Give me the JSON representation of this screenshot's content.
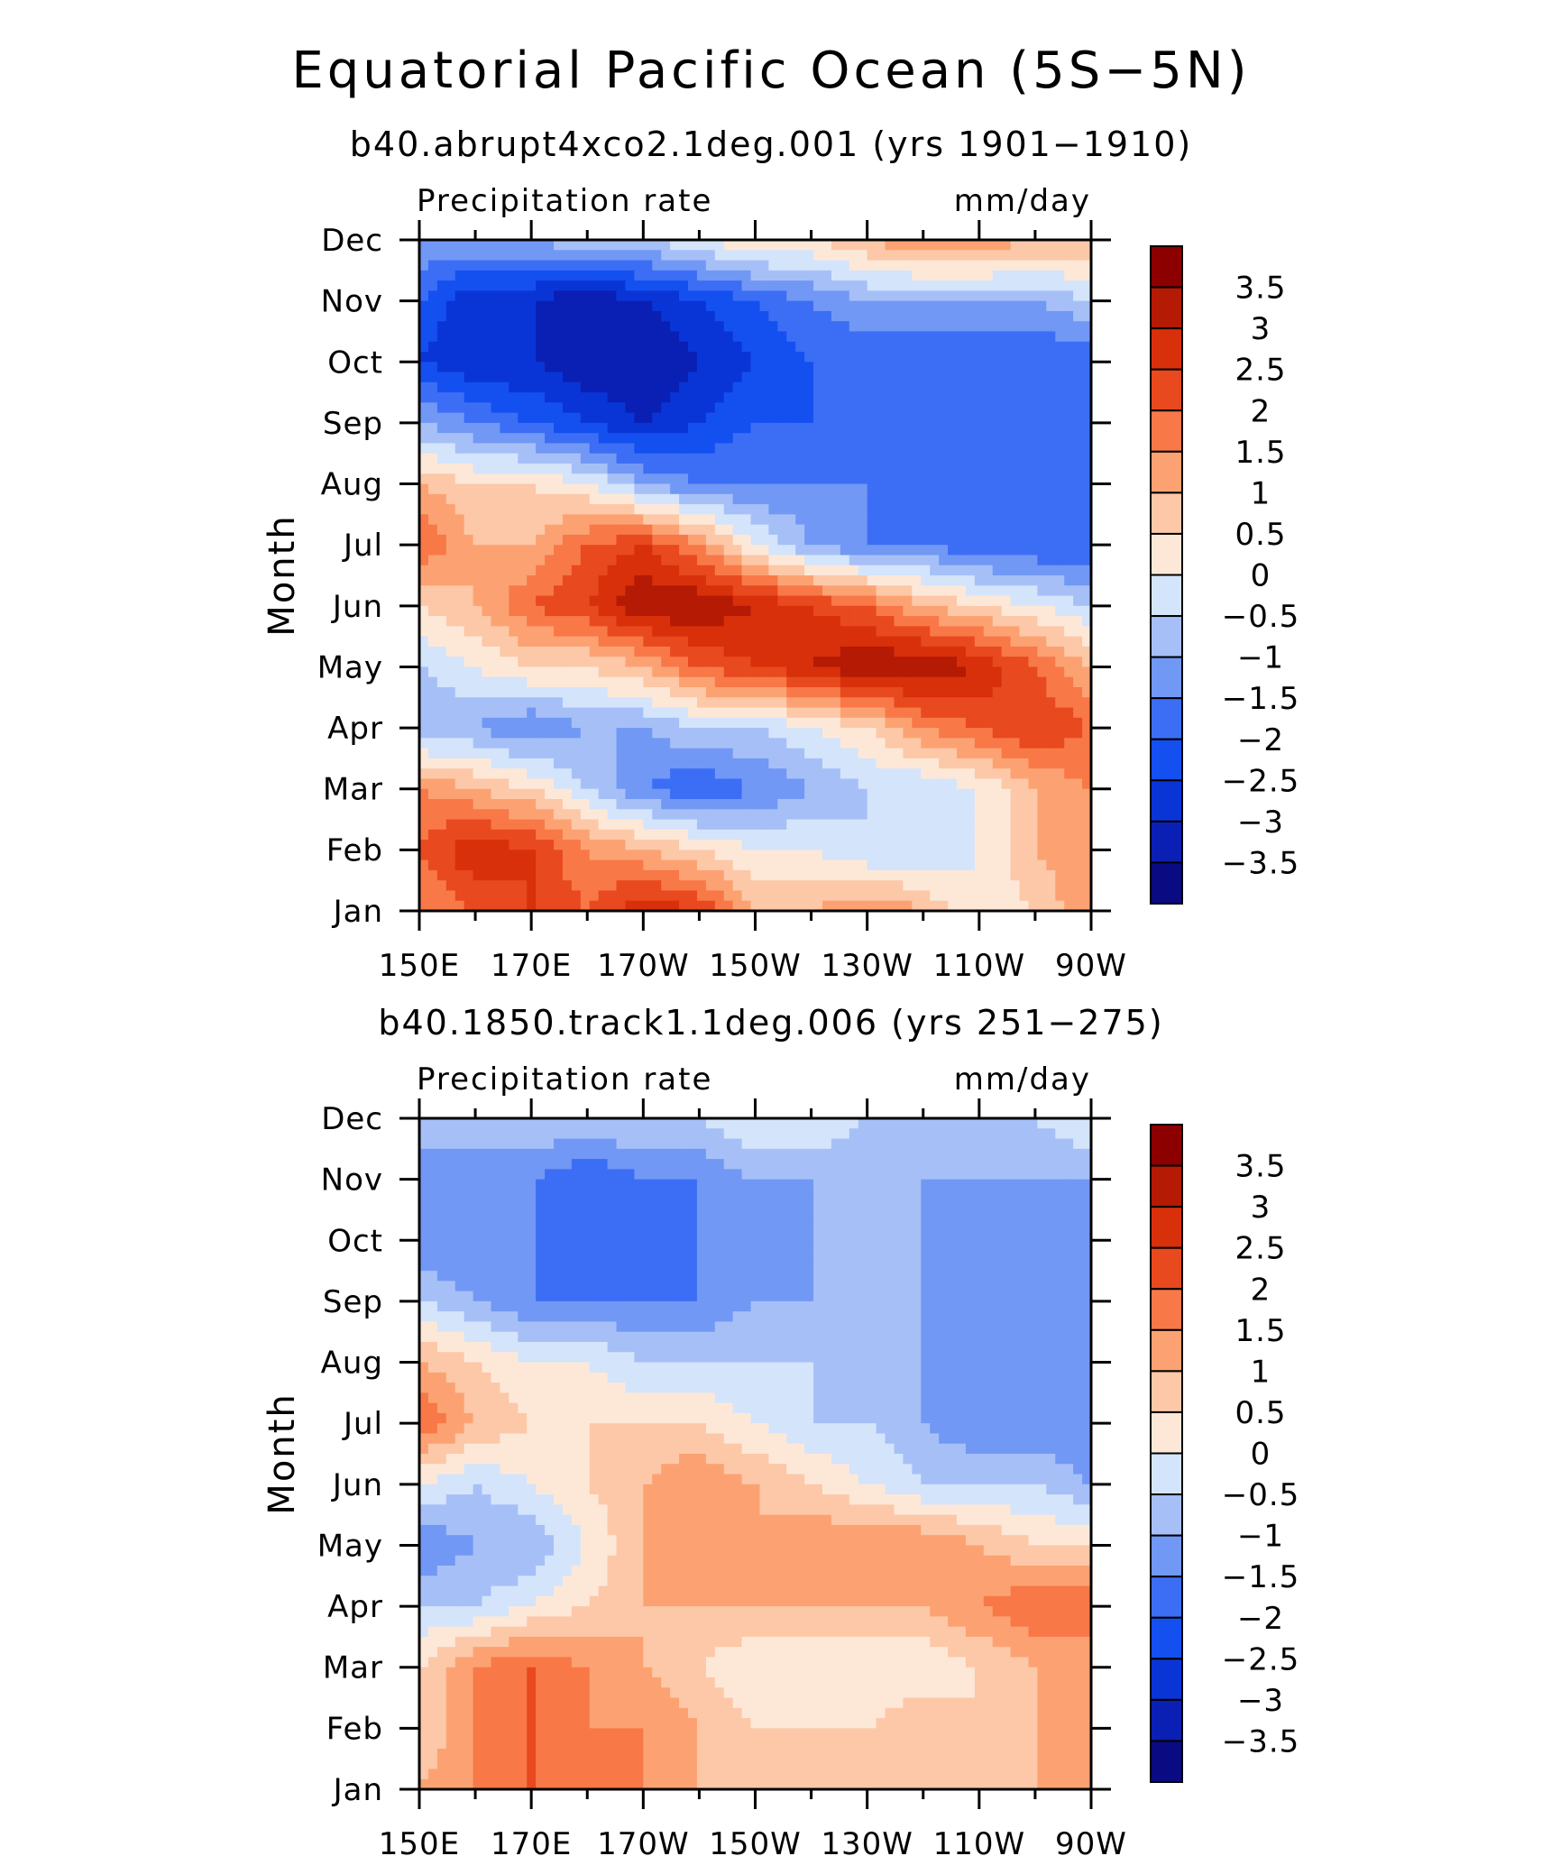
{
  "figure": {
    "title": "Equatorial Pacific Ocean (5S−5N)"
  },
  "chart_data": [
    {
      "type": "heatmap",
      "title": "b40.abrupt4xco2.1deg.001 (yrs 1901−1910)",
      "left_label": "Precipitation rate",
      "right_label": "mm/day",
      "ylabel": "Month",
      "xlabel": "",
      "x_ticks": [
        "150E",
        "170E",
        "170W",
        "150W",
        "130W",
        "110W",
        "90W"
      ],
      "y_ticks": [
        "Jan",
        "Feb",
        "Mar",
        "Apr",
        "May",
        "Jun",
        "Jul",
        "Aug",
        "Sep",
        "Oct",
        "Nov",
        "Dec"
      ],
      "x_lon": [
        150,
        160,
        170,
        180,
        190,
        200,
        210,
        220,
        230,
        240,
        250,
        260,
        270
      ],
      "grid": [
        [
          1.5,
          2.0,
          2.5,
          2.0,
          3.0,
          2.5,
          1.0,
          1.0,
          1.5,
          1.0,
          0.0,
          0.5,
          1.5
        ],
        [
          2.0,
          3.0,
          2.5,
          1.5,
          1.0,
          0.5,
          0.0,
          0.0,
          -0.5,
          -0.5,
          0.0,
          1.0,
          1.5
        ],
        [
          1.5,
          1.0,
          0.5,
          -0.5,
          -1.5,
          -2.0,
          -1.5,
          -1.0,
          -0.5,
          -0.5,
          0.0,
          1.0,
          1.5
        ],
        [
          -1.0,
          -1.0,
          -1.5,
          -1.0,
          -1.0,
          -0.5,
          -0.5,
          0.0,
          0.5,
          1.5,
          2.0,
          2.5,
          2.0
        ],
        [
          -0.5,
          0.0,
          0.5,
          0.5,
          1.0,
          2.0,
          2.5,
          3.0,
          3.5,
          3.5,
          3.0,
          2.0,
          1.0
        ],
        [
          0.5,
          1.0,
          2.0,
          2.5,
          3.5,
          3.5,
          3.0,
          2.5,
          2.0,
          1.0,
          0.5,
          0.0,
          -0.5
        ],
        [
          2.0,
          1.0,
          1.0,
          2.0,
          2.5,
          1.5,
          0.0,
          -1.0,
          -1.5,
          -1.5,
          -2.0,
          -2.0,
          -2.0
        ],
        [
          1.0,
          0.5,
          0.5,
          0.0,
          -1.0,
          -1.5,
          -1.5,
          -1.5,
          -1.5,
          -2.0,
          -2.0,
          -2.0,
          -2.0
        ],
        [
          -1.0,
          -1.5,
          -2.0,
          -2.5,
          -3.0,
          -2.5,
          -2.0,
          -2.0,
          -2.0,
          -2.0,
          -1.5,
          -1.5,
          -1.5
        ],
        [
          -2.5,
          -3.0,
          -3.0,
          -3.5,
          -3.5,
          -3.0,
          -2.5,
          -2.0,
          -2.0,
          -2.0,
          -2.0,
          -2.0,
          -2.0
        ],
        [
          -2.0,
          -3.0,
          -3.0,
          -3.5,
          -3.0,
          -2.5,
          -2.0,
          -1.5,
          -1.0,
          -1.0,
          -1.0,
          -1.0,
          -0.5
        ],
        [
          -1.0,
          -1.0,
          -1.0,
          -0.5,
          -0.5,
          0.0,
          0.5,
          0.5,
          1.0,
          1.5,
          1.5,
          1.0,
          1.0
        ]
      ],
      "colorbar": {
        "labels": [
          "3.5",
          "3",
          "2.5",
          "2",
          "1.5",
          "1",
          "0.5",
          "0",
          "−0.5",
          "−1",
          "−1.5",
          "−2",
          "−2.5",
          "−3",
          "−3.5"
        ],
        "levels": [
          -3.5,
          -3,
          -2.5,
          -2,
          -1.5,
          -1,
          -0.5,
          0,
          0.5,
          1,
          1.5,
          2,
          2.5,
          3,
          3.5
        ],
        "colors": [
          "#0a0a82",
          "#0a20b4",
          "#0a35d6",
          "#1450f0",
          "#3c6ef5",
          "#7298f5",
          "#a6c0f7",
          "#d4e4fb",
          "#fde8d8",
          "#fcc8a8",
          "#fca272",
          "#f87848",
          "#e8491e",
          "#d8300a",
          "#b41a04",
          "#8c0000"
        ]
      }
    },
    {
      "type": "heatmap",
      "title": "b40.1850.track1.1deg.006 (yrs 251−275)",
      "left_label": "Precipitation rate",
      "right_label": "mm/day",
      "ylabel": "Month",
      "xlabel": "",
      "x_ticks": [
        "150E",
        "170E",
        "170W",
        "150W",
        "130W",
        "110W",
        "90W"
      ],
      "y_ticks": [
        "Jan",
        "Feb",
        "Mar",
        "Apr",
        "May",
        "Jun",
        "Jul",
        "Aug",
        "Sep",
        "Oct",
        "Nov",
        "Dec"
      ],
      "x_lon": [
        150,
        160,
        170,
        180,
        190,
        200,
        210,
        220,
        230,
        240,
        250,
        260,
        270
      ],
      "grid": [
        [
          1.0,
          1.5,
          2.0,
          1.5,
          1.5,
          1.0,
          1.0,
          0.5,
          1.0,
          1.0,
          0.5,
          1.0,
          1.5
        ],
        [
          0.5,
          1.5,
          2.0,
          1.5,
          1.5,
          1.0,
          0.5,
          0.5,
          0.5,
          1.0,
          0.5,
          1.0,
          1.0
        ],
        [
          0.5,
          1.5,
          2.0,
          1.5,
          1.0,
          0.5,
          0.0,
          0.0,
          0.0,
          0.0,
          0.5,
          1.0,
          1.0
        ],
        [
          -0.5,
          -0.5,
          0.0,
          0.5,
          1.0,
          1.0,
          1.0,
          1.0,
          1.0,
          1.0,
          1.5,
          2.0,
          2.0
        ],
        [
          -1.5,
          -1.0,
          -1.0,
          0.0,
          1.0,
          1.0,
          1.0,
          1.5,
          1.5,
          1.5,
          1.0,
          0.5,
          0.5
        ],
        [
          0.0,
          -0.5,
          0.0,
          0.5,
          1.0,
          1.5,
          1.0,
          0.5,
          0.0,
          -0.5,
          -0.5,
          -0.5,
          -1.0
        ],
        [
          2.0,
          1.0,
          0.5,
          0.5,
          0.5,
          0.5,
          0.0,
          -0.5,
          -0.5,
          -1.0,
          -1.5,
          -1.5,
          -1.5
        ],
        [
          1.0,
          0.5,
          0.0,
          0.0,
          -0.5,
          -0.5,
          -0.5,
          -0.5,
          -1.0,
          -1.0,
          -1.5,
          -1.5,
          -1.5
        ],
        [
          -0.5,
          -1.0,
          -1.5,
          -1.5,
          -1.5,
          -1.5,
          -1.0,
          -1.0,
          -1.0,
          -1.0,
          -1.5,
          -1.5,
          -1.5
        ],
        [
          -1.5,
          -1.5,
          -1.5,
          -2.0,
          -2.0,
          -1.5,
          -1.5,
          -1.0,
          -1.0,
          -1.0,
          -1.5,
          -1.5,
          -1.5
        ],
        [
          -1.5,
          -1.5,
          -1.5,
          -2.0,
          -1.5,
          -1.5,
          -1.0,
          -1.0,
          -1.0,
          -1.0,
          -1.0,
          -1.0,
          -1.0
        ],
        [
          -0.5,
          -0.5,
          -0.5,
          -0.5,
          -0.5,
          -0.5,
          0.0,
          0.0,
          -0.5,
          -0.5,
          -0.5,
          -0.5,
          0.0
        ]
      ],
      "colorbar": {
        "labels": [
          "3.5",
          "3",
          "2.5",
          "2",
          "1.5",
          "1",
          "0.5",
          "0",
          "−0.5",
          "−1",
          "−1.5",
          "−2",
          "−2.5",
          "−3",
          "−3.5"
        ],
        "levels": [
          -3.5,
          -3,
          -2.5,
          -2,
          -1.5,
          -1,
          -0.5,
          0,
          0.5,
          1,
          1.5,
          2,
          2.5,
          3,
          3.5
        ],
        "colors": [
          "#0a0a82",
          "#0a20b4",
          "#0a35d6",
          "#1450f0",
          "#3c6ef5",
          "#7298f5",
          "#a6c0f7",
          "#d4e4fb",
          "#fde8d8",
          "#fcc8a8",
          "#fca272",
          "#f87848",
          "#e8491e",
          "#d8300a",
          "#b41a04",
          "#8c0000"
        ]
      }
    }
  ]
}
